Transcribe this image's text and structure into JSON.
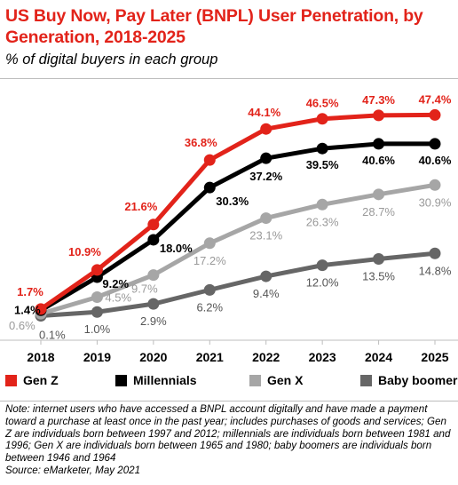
{
  "header": {
    "title": "US Buy Now, Pay Later (BNPL) User Penetration, by Generation, 2018-2025",
    "subtitle": "% of digital buyers in each group"
  },
  "chart_data": {
    "type": "line",
    "title": "US Buy Now, Pay Later (BNPL) User Penetration, by Generation, 2018-2025",
    "subtitle": "% of digital buyers in each group",
    "xlabel": "",
    "ylabel": "",
    "categories": [
      "2018",
      "2019",
      "2020",
      "2021",
      "2022",
      "2023",
      "2024",
      "2025"
    ],
    "ylim": [
      0,
      50
    ],
    "grid": false,
    "legend_position": "bottom",
    "series": [
      {
        "name": "Gen Z",
        "color": "#e2231a",
        "label_color": "#e2231a",
        "values": [
          1.7,
          10.9,
          21.6,
          36.8,
          44.1,
          46.5,
          47.3,
          47.4
        ],
        "labels": [
          "1.7%",
          "10.9%",
          "21.6%",
          "36.8%",
          "44.1%",
          "46.5%",
          "47.3%",
          "47.4%"
        ]
      },
      {
        "name": "Millennials",
        "color": "#000000",
        "label_color": "#000000",
        "values": [
          1.4,
          9.2,
          18.0,
          30.3,
          37.2,
          39.5,
          40.6,
          40.6
        ],
        "labels": [
          "1.4%",
          "9.2%",
          "18.0%",
          "30.3%",
          "37.2%",
          "39.5%",
          "40.6%",
          "40.6%"
        ]
      },
      {
        "name": "Gen X",
        "color": "#a6a6a6",
        "label_color": "#9a9a9a",
        "values": [
          0.6,
          4.5,
          9.7,
          17.2,
          23.1,
          26.3,
          28.7,
          30.9
        ],
        "labels": [
          "0.6%",
          "4.5%",
          "9.7%",
          "17.2%",
          "23.1%",
          "26.3%",
          "28.7%",
          "30.9%"
        ]
      },
      {
        "name": "Baby boomers",
        "color": "#666666",
        "label_color": "#555555",
        "values": [
          0.1,
          1.0,
          2.9,
          6.2,
          9.4,
          12.0,
          13.5,
          14.8
        ],
        "labels": [
          "0.1%",
          "1.0%",
          "2.9%",
          "6.2%",
          "9.4%",
          "12.0%",
          "13.5%",
          "14.8%"
        ]
      }
    ]
  },
  "footer": {
    "note": "Note: internet users who have accessed a BNPL account digitally and have made a payment toward a purchase at least once in the past year; includes purchases of goods and services; Gen Z are individuals born between 1997 and 2012; millennials are individuals born between 1981 and 1996; Gen X are individuals born between 1965 and 1980; baby boomers are individuals born between 1946 and 1964",
    "source": "Source: eMarketer, May 2021"
  }
}
